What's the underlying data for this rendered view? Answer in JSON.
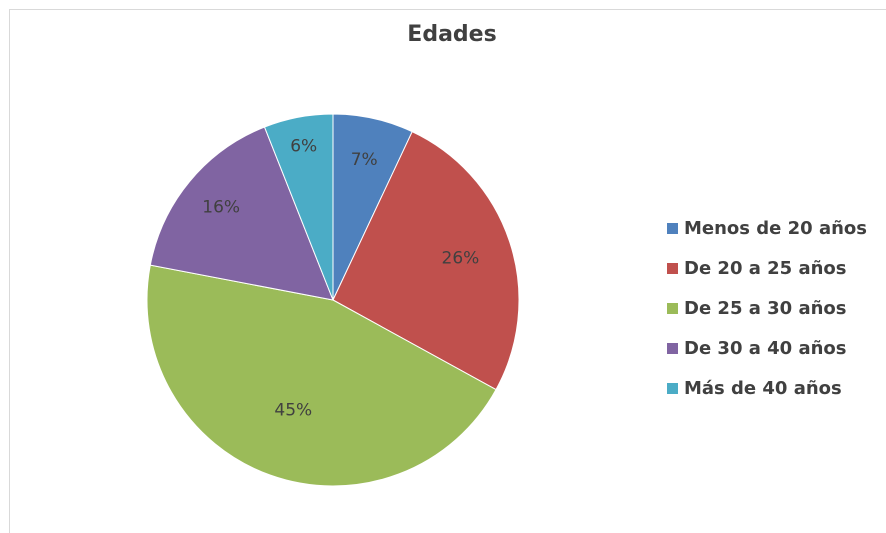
{
  "chart_data": {
    "type": "pie",
    "title": "Edades",
    "categories": [
      "Menos de 20 años",
      "De 20 a 25 años",
      "De 25 a 30 años",
      "De 30 a 40 años",
      "Más de 40 años"
    ],
    "values": [
      7,
      26,
      45,
      16,
      6
    ],
    "value_labels": [
      "7%",
      "26%",
      "45%",
      "16%",
      "6%"
    ],
    "colors": [
      "#4f81bd",
      "#c0504d",
      "#9bbb59",
      "#8064a2",
      "#4bacc6"
    ],
    "legend": "right",
    "start_angle": "12 o'clock, clockwise"
  }
}
